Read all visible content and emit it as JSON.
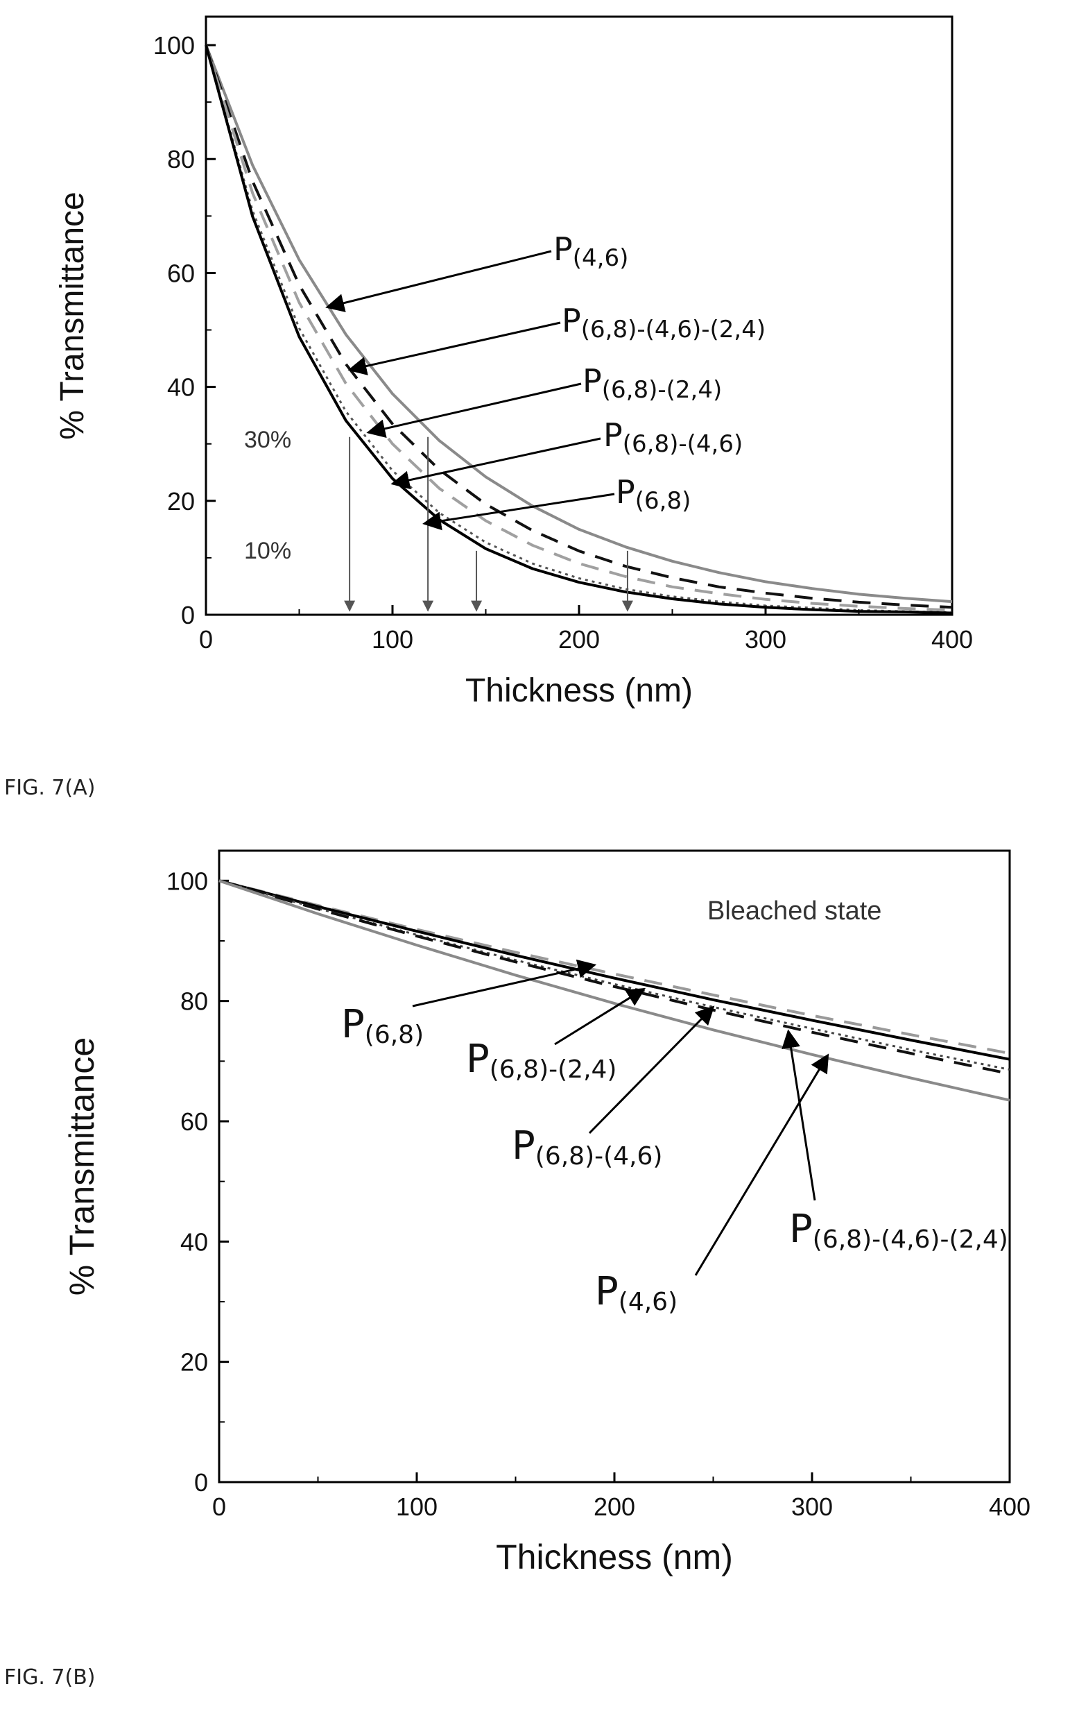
{
  "figures": [
    {
      "caption": "FIG. 7(A)"
    },
    {
      "caption": "FIG. 7(B)"
    }
  ],
  "chart_data": [
    {
      "type": "line",
      "title": "",
      "xlabel": "Thickness (nm)",
      "ylabel": "% Transmittance",
      "xlim": [
        0,
        400
      ],
      "ylim": [
        0,
        105
      ],
      "xticks": [
        0,
        100,
        200,
        300,
        400
      ],
      "yticks": [
        0,
        20,
        40,
        60,
        80,
        100
      ],
      "grid": false,
      "legend": "none",
      "x": [
        0,
        25,
        50,
        75,
        100,
        125,
        150,
        175,
        200,
        225,
        250,
        275,
        300,
        325,
        350,
        375,
        400
      ],
      "series": [
        {
          "name": "P(4,6)",
          "style": "solid",
          "color": "#8a8a8a",
          "values": [
            100,
            78.9,
            62.3,
            49.2,
            38.8,
            30.6,
            24.2,
            19.1,
            15.0,
            11.9,
            9.4,
            7.4,
            5.8,
            4.6,
            3.6,
            2.9,
            2.3
          ]
        },
        {
          "name": "P(6,8)-(4,6)-(2,4)",
          "style": "dashed",
          "color": "#111111",
          "values": [
            100,
            76.1,
            57.9,
            44.0,
            33.5,
            25.5,
            19.4,
            14.8,
            11.2,
            8.5,
            6.5,
            4.9,
            3.8,
            2.9,
            2.2,
            1.7,
            1.3
          ]
        },
        {
          "name": "P(6,8)-(2,4)",
          "style": "dashed",
          "color": "#a0a0a0",
          "values": [
            100,
            74.0,
            54.8,
            40.6,
            30.0,
            22.2,
            16.5,
            12.2,
            9.0,
            6.7,
            4.9,
            3.7,
            2.7,
            2.0,
            1.5,
            1.1,
            0.8
          ]
        },
        {
          "name": "P(6,8)-(4,6)",
          "style": "dotted",
          "color": "#555555",
          "values": [
            100,
            70.9,
            50.3,
            35.7,
            25.3,
            17.9,
            12.7,
            9.0,
            6.4,
            4.5,
            3.2,
            2.3,
            1.6,
            1.2,
            0.8,
            0.6,
            0.4
          ]
        },
        {
          "name": "P(6,8)",
          "style": "solid",
          "color": "#000000",
          "values": [
            100,
            69.9,
            48.8,
            34.1,
            23.9,
            16.7,
            11.6,
            8.1,
            5.7,
            4.0,
            2.8,
            1.9,
            1.3,
            0.9,
            0.6,
            0.5,
            0.3
          ]
        }
      ],
      "annotations": {
        "level_labels": [
          {
            "text": "30%",
            "y": 30
          },
          {
            "text": "10%",
            "y": 10
          }
        ],
        "vertical_arrows_x": [
          77,
          119,
          145,
          226
        ],
        "series_labels": [
          {
            "base": "P",
            "sub": "(4,6)",
            "target": [
              65,
              54
            ]
          },
          {
            "base": "P",
            "sub": "(6,8)-(4,6)-(2,4)",
            "target": [
              77,
              43
            ]
          },
          {
            "base": "P",
            "sub": "(6,8)-(2,4)",
            "target": [
              87,
              32
            ]
          },
          {
            "base": "P",
            "sub": "(6,8)-(4,6)",
            "target": [
              100,
              23
            ]
          },
          {
            "base": "P",
            "sub": "(6,8)",
            "target": [
              117,
              16
            ]
          }
        ]
      }
    },
    {
      "type": "line",
      "title": "",
      "xlabel": "Thickness (nm)",
      "ylabel": "% Transmittance",
      "xlim": [
        0,
        400
      ],
      "ylim": [
        0,
        105
      ],
      "xticks": [
        0,
        100,
        200,
        300,
        400
      ],
      "yticks": [
        0,
        20,
        40,
        60,
        80,
        100
      ],
      "grid": false,
      "legend": "none",
      "x": [
        0,
        50,
        100,
        150,
        200,
        250,
        300,
        350,
        400
      ],
      "series": [
        {
          "name": "P(6,8)-(2,4)",
          "style": "dashed",
          "color": "#9a9a9a",
          "values": [
            100,
            95.9,
            91.9,
            88.1,
            84.5,
            81.0,
            77.6,
            74.4,
            71.3
          ]
        },
        {
          "name": "P(6,8)",
          "style": "solid",
          "color": "#000000",
          "values": [
            100,
            95.7,
            91.6,
            87.6,
            83.8,
            80.2,
            76.8,
            73.5,
            70.3
          ]
        },
        {
          "name": "P(6,8)-(4,6)",
          "style": "dotted",
          "color": "#444444",
          "values": [
            100,
            95.4,
            91.0,
            86.8,
            82.8,
            79.0,
            75.4,
            71.9,
            68.6
          ]
        },
        {
          "name": "P(6,8)-(4,6)-(2,4)",
          "style": "dashed",
          "color": "#111111",
          "values": [
            100,
            95.3,
            90.8,
            86.5,
            82.4,
            78.5,
            74.8,
            71.3,
            67.9
          ]
        },
        {
          "name": "P(4,6)",
          "style": "solid",
          "color": "#8a8a8a",
          "values": [
            100,
            94.5,
            89.3,
            84.3,
            79.6,
            75.2,
            71.1,
            67.2,
            63.5
          ]
        }
      ],
      "annotations": {
        "state_label": "Bleached state",
        "series_labels": [
          {
            "base": "P",
            "sub": "(6,8)",
            "target": [
              190,
              86
            ]
          },
          {
            "base": "P",
            "sub": "(6,8)-(2,4)",
            "target": [
              215,
              82
            ]
          },
          {
            "base": "P",
            "sub": "(6,8)-(4,6)",
            "target": [
              250,
              79
            ]
          },
          {
            "base": "P",
            "sub": "(6,8)-(4,6)-(2,4)",
            "target": [
              288,
              75
            ]
          },
          {
            "base": "P",
            "sub": "(4,6)",
            "target": [
              308,
              71
            ]
          }
        ]
      }
    }
  ]
}
